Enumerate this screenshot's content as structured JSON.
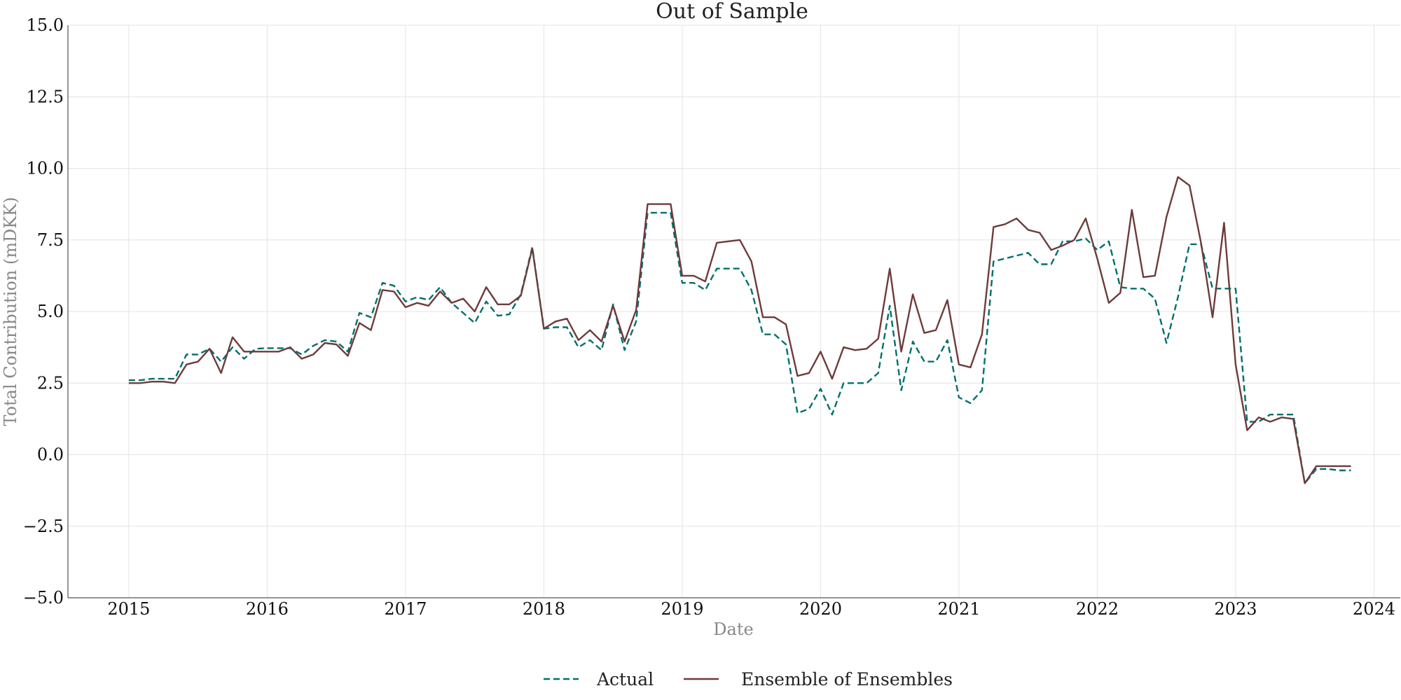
{
  "chart_data": {
    "type": "line",
    "title": "Out of Sample",
    "xlabel": "Date",
    "ylabel": "Total Contribution (mDKK)",
    "xlim": [
      2014.56,
      2024.19
    ],
    "ylim": [
      -5.0,
      15.0
    ],
    "x_ticks": [
      2015,
      2016,
      2017,
      2018,
      2019,
      2020,
      2021,
      2022,
      2023,
      2024
    ],
    "y_ticks": [
      -5.0,
      -2.5,
      0.0,
      2.5,
      5.0,
      7.5,
      10.0,
      12.5,
      15.0
    ],
    "y_tick_labels": [
      "−5.0",
      "−2.5",
      "0.0",
      "2.5",
      "5.0",
      "7.5",
      "10.0",
      "12.5",
      "15.0"
    ],
    "grid": true,
    "legend_position": "bottom-center",
    "x_start": 2015.0,
    "x_step": 0.08333,
    "series": [
      {
        "name": "Actual",
        "color": "#00706b",
        "style": "dashed",
        "values": [
          2.6,
          2.6,
          2.65,
          2.65,
          2.65,
          3.5,
          3.5,
          3.7,
          3.25,
          3.75,
          3.35,
          3.7,
          3.72,
          3.72,
          3.72,
          3.5,
          3.8,
          4.0,
          3.95,
          3.6,
          4.95,
          4.8,
          6.0,
          5.9,
          5.35,
          5.5,
          5.4,
          5.85,
          5.3,
          4.95,
          4.6,
          5.35,
          4.85,
          4.9,
          5.6,
          7.25,
          4.4,
          4.45,
          4.45,
          3.75,
          4.0,
          3.65,
          5.25,
          3.65,
          4.65,
          8.45,
          8.45,
          8.45,
          6.0,
          6.0,
          5.75,
          6.5,
          6.5,
          6.5,
          5.75,
          4.2,
          4.2,
          3.85,
          1.45,
          1.6,
          2.3,
          1.4,
          2.5,
          2.5,
          2.5,
          2.85,
          5.2,
          2.25,
          3.95,
          3.25,
          3.25,
          4.0,
          2.0,
          1.8,
          2.25,
          6.75,
          6.85,
          6.95,
          7.05,
          6.65,
          6.65,
          7.45,
          7.45,
          7.55,
          7.15,
          7.45,
          5.85,
          5.8,
          5.8,
          5.45,
          3.9,
          5.5,
          7.35,
          7.35,
          5.8,
          5.8,
          5.8,
          1.15,
          1.15,
          1.4,
          1.4,
          1.4,
          -1.0,
          -0.5,
          -0.5,
          -0.55,
          -0.55
        ]
      },
      {
        "name": "Ensemble of Ensembles",
        "color": "#6e3b3b",
        "style": "solid",
        "values": [
          2.5,
          2.5,
          2.55,
          2.55,
          2.5,
          3.15,
          3.25,
          3.7,
          2.85,
          4.1,
          3.6,
          3.6,
          3.6,
          3.6,
          3.75,
          3.35,
          3.5,
          3.9,
          3.85,
          3.45,
          4.6,
          4.35,
          5.75,
          5.7,
          5.15,
          5.3,
          5.2,
          5.7,
          5.3,
          5.45,
          5.0,
          5.85,
          5.25,
          5.25,
          5.55,
          7.2,
          4.4,
          4.65,
          4.75,
          4.0,
          4.35,
          3.95,
          5.2,
          3.95,
          5.05,
          8.75,
          8.75,
          8.75,
          6.25,
          6.25,
          6.05,
          7.4,
          7.45,
          7.5,
          6.75,
          4.8,
          4.8,
          4.55,
          2.75,
          2.85,
          3.6,
          2.65,
          3.75,
          3.65,
          3.7,
          4.05,
          6.5,
          3.6,
          5.6,
          4.25,
          4.35,
          5.4,
          3.15,
          3.05,
          4.2,
          7.95,
          8.05,
          8.25,
          7.85,
          7.75,
          7.15,
          7.3,
          7.5,
          8.25,
          6.85,
          5.3,
          5.65,
          8.55,
          6.2,
          6.25,
          8.3,
          9.7,
          9.4,
          7.4,
          4.8,
          8.1,
          3.15,
          0.85,
          1.3,
          1.15,
          1.3,
          1.25,
          -1.0,
          -0.4,
          -0.4,
          -0.4,
          -0.4
        ]
      }
    ]
  }
}
